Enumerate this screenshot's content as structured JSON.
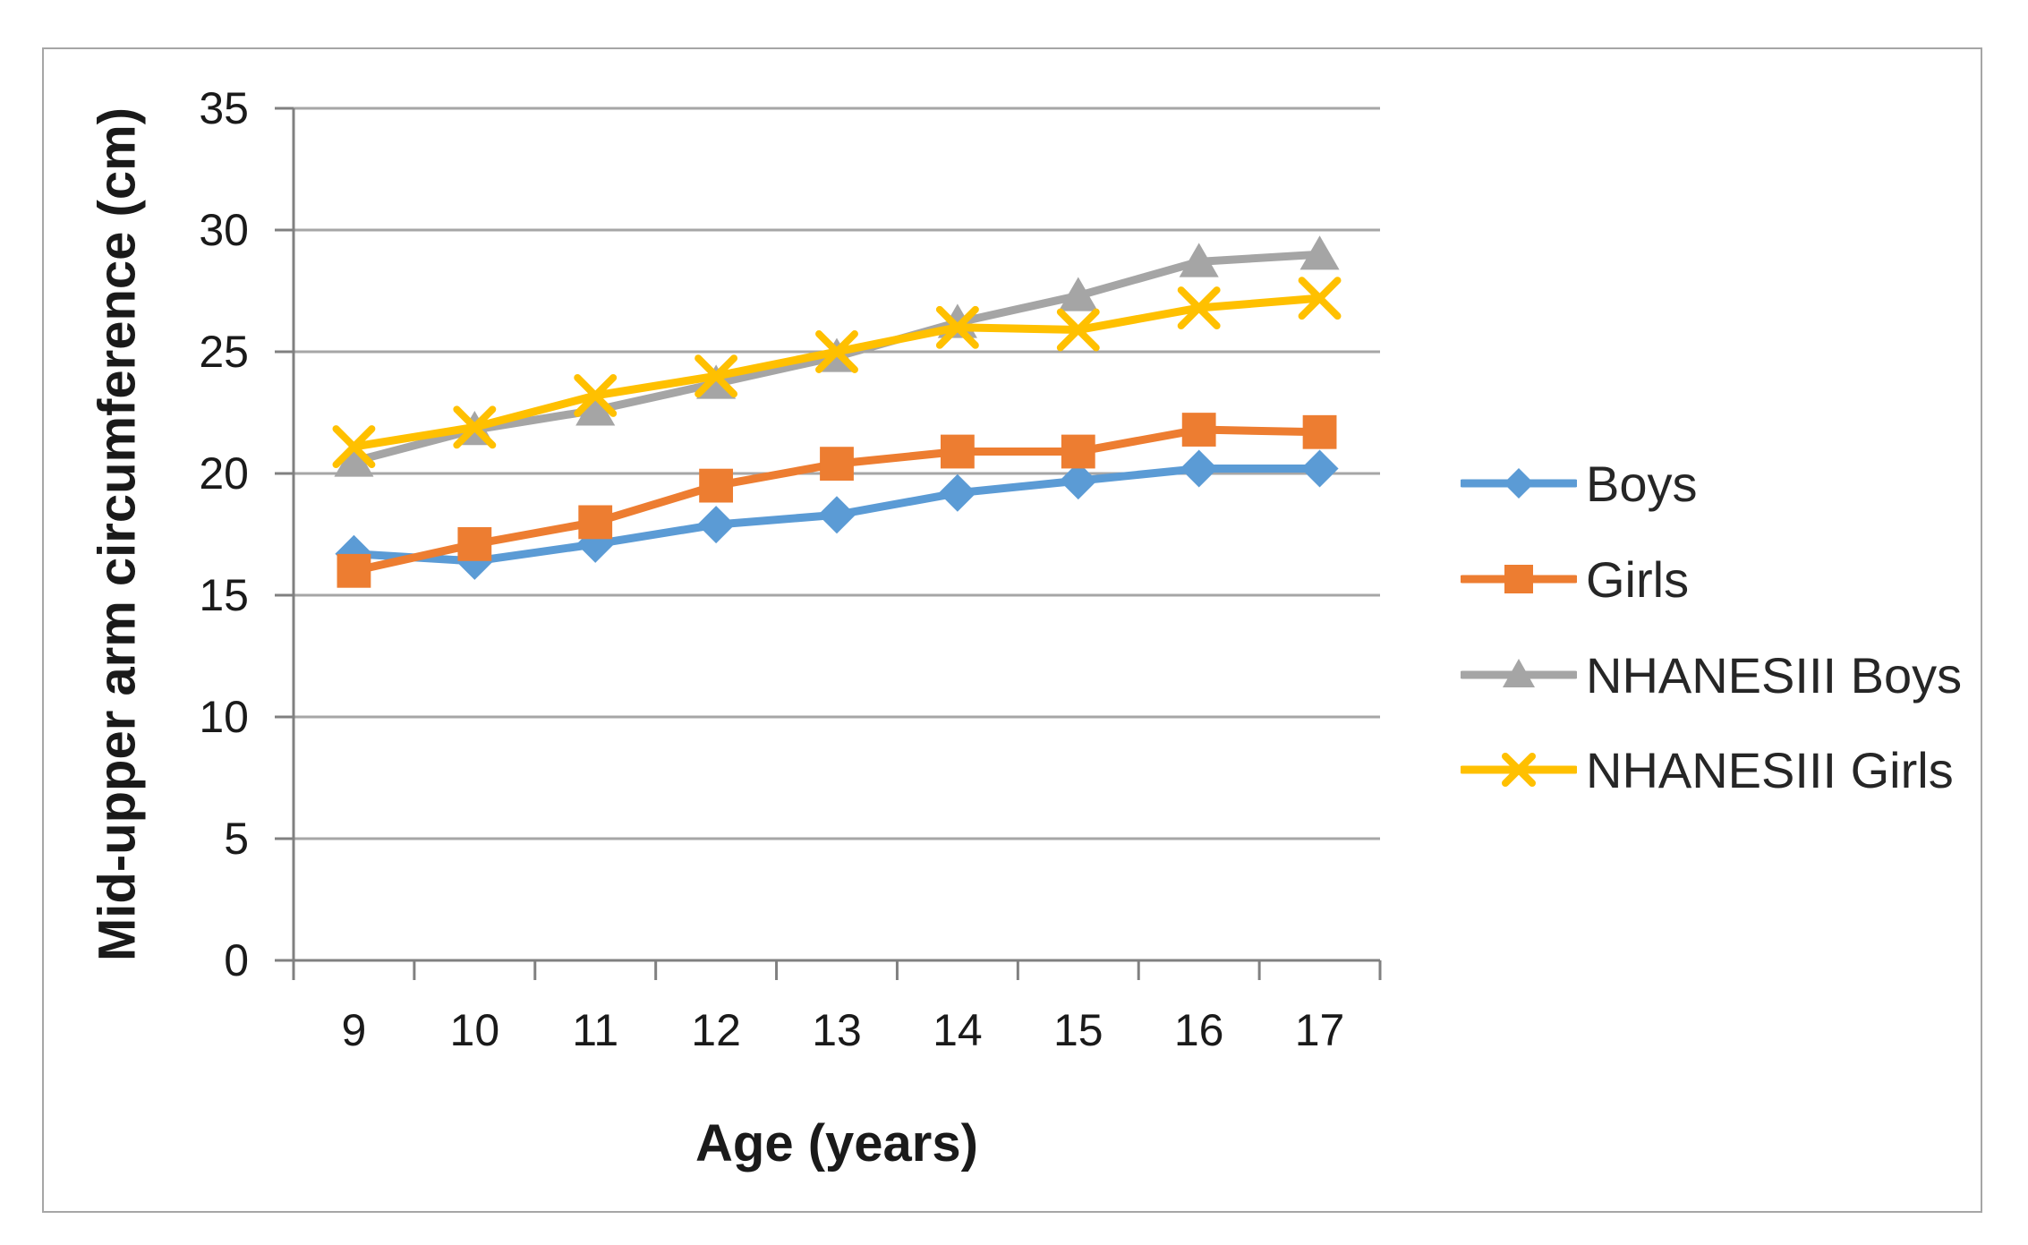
{
  "figure": {
    "background_color": "#FFFFFF",
    "border_color": "#A6A6A6",
    "gridline_color": "#A6A6A6",
    "axis_line_color": "#808080",
    "text_color": "#1a1a1a"
  },
  "chart_data": {
    "type": "line",
    "title": "",
    "xlabel": "Age (years)",
    "ylabel": "Mid-upper arm circumference (cm)",
    "categories": [
      9,
      10,
      11,
      12,
      13,
      14,
      15,
      16,
      17
    ],
    "xticklabels": [
      "9",
      "10",
      "11",
      "12",
      "13",
      "14",
      "15",
      "16",
      "17"
    ],
    "yticks": [
      0,
      5,
      10,
      15,
      20,
      25,
      30,
      35
    ],
    "yticklabels": [
      "0",
      "5",
      "10",
      "15",
      "20",
      "25",
      "30",
      "35"
    ],
    "ylim": [
      0,
      35
    ],
    "grid": true,
    "legend_position": "right",
    "series": [
      {
        "name": "Boys",
        "color": "#5B9BD5",
        "marker": "diamond",
        "values": [
          16.7,
          16.4,
          17.1,
          17.9,
          18.3,
          19.2,
          19.7,
          20.2,
          20.2
        ]
      },
      {
        "name": "Girls",
        "color": "#ED7D31",
        "marker": "square",
        "values": [
          16.0,
          17.1,
          18.0,
          19.5,
          20.4,
          20.9,
          20.9,
          21.8,
          21.7
        ]
      },
      {
        "name": "NHANESIII Boys",
        "color": "#A5A5A5",
        "marker": "triangle",
        "values": [
          20.5,
          21.8,
          22.6,
          23.7,
          24.8,
          26.2,
          27.3,
          28.7,
          29.0
        ]
      },
      {
        "name": "NHANESIII Girls",
        "color": "#FFC000",
        "marker": "x",
        "values": [
          21.1,
          21.9,
          23.2,
          24.0,
          25.0,
          26.0,
          25.9,
          26.8,
          27.2
        ]
      }
    ]
  }
}
